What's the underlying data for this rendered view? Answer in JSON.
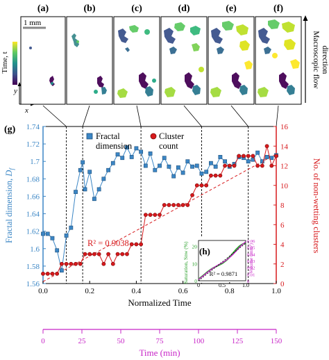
{
  "figure": {
    "scale_bar_label": "1 mm",
    "colorbar_label": "Time, t",
    "axis_y_label": "y",
    "axis_x_label": "x",
    "flow_label_line1": "Macroscopic flow",
    "flow_label_line2": "direction"
  },
  "panels": [
    {
      "label": "(a)",
      "fraction": 0.1
    },
    {
      "label": "(b)",
      "fraction": 0.17
    },
    {
      "label": "(c)",
      "fraction": 0.42
    },
    {
      "label": "(d)",
      "fraction": 0.68
    },
    {
      "label": "(e)",
      "fraction": 0.88
    },
    {
      "label": "(f)",
      "fraction": 1.0
    }
  ],
  "chart_data": {
    "type": "line",
    "panel_label": "(g)",
    "xlabel": "Normalized Time",
    "xlim": [
      0.0,
      1.0
    ],
    "xticks": [
      0.0,
      0.2,
      0.4,
      0.6,
      0.8,
      1.0
    ],
    "xtick_labels": [
      "0.0",
      "0.2",
      "0.4",
      "0.6",
      "0.8",
      "1.0"
    ],
    "secondary_xlabel": "Time (min)",
    "secondary_xticks": [
      0,
      25,
      50,
      75,
      100,
      125,
      150
    ],
    "ylabel_left": "Fractal dimension, D_f",
    "ylim_left": [
      1.56,
      1.74
    ],
    "yticks_left": [
      "1.56",
      "1.58",
      "1.6",
      "1.62",
      "1.64",
      "1.66",
      "1.68",
      "1.7",
      "1.72",
      "1.74"
    ],
    "ylabel_right": "No. of non-wetting clusters",
    "ylim_right": [
      0,
      16
    ],
    "yticks_right": [
      "0",
      "2",
      "4",
      "6",
      "8",
      "10",
      "12",
      "14",
      "16"
    ],
    "r2_label": "R² = 0.9038",
    "event_lines_x": [
      0.1,
      0.17,
      0.42,
      0.68,
      0.88
    ],
    "series": [
      {
        "name": "Fractal dimension",
        "axis": "left",
        "color": "#3b86c5",
        "marker": "square",
        "x": [
          0.0,
          0.02,
          0.04,
          0.06,
          0.08,
          0.1,
          0.12,
          0.14,
          0.16,
          0.17,
          0.18,
          0.2,
          0.22,
          0.24,
          0.26,
          0.28,
          0.3,
          0.32,
          0.34,
          0.36,
          0.38,
          0.4,
          0.42,
          0.44,
          0.46,
          0.48,
          0.5,
          0.52,
          0.54,
          0.56,
          0.58,
          0.6,
          0.62,
          0.64,
          0.66,
          0.68,
          0.7,
          0.72,
          0.74,
          0.76,
          0.78,
          0.8,
          0.82,
          0.84,
          0.86,
          0.88,
          0.9,
          0.92,
          0.94,
          0.96,
          0.98,
          1.0
        ],
        "y": [
          1.617,
          1.617,
          1.612,
          1.598,
          1.575,
          1.615,
          1.624,
          1.665,
          1.69,
          1.699,
          1.668,
          1.688,
          1.657,
          1.668,
          1.68,
          1.69,
          1.698,
          1.708,
          1.704,
          1.716,
          1.705,
          1.715,
          1.711,
          1.695,
          1.709,
          1.69,
          1.695,
          1.704,
          1.694,
          1.683,
          1.693,
          1.687,
          1.7,
          1.694,
          1.695,
          1.686,
          1.688,
          1.698,
          1.694,
          1.705,
          1.7,
          1.694,
          1.697,
          1.705,
          1.704,
          1.7,
          1.702,
          1.71,
          1.7,
          1.705,
          1.704,
          1.707
        ]
      },
      {
        "name": "Cluster count",
        "axis": "right",
        "color": "#d7191c",
        "marker": "circle",
        "x": [
          0.0,
          0.02,
          0.04,
          0.06,
          0.08,
          0.1,
          0.12,
          0.14,
          0.16,
          0.18,
          0.2,
          0.22,
          0.24,
          0.26,
          0.28,
          0.3,
          0.32,
          0.34,
          0.36,
          0.38,
          0.4,
          0.42,
          0.44,
          0.46,
          0.48,
          0.5,
          0.52,
          0.54,
          0.56,
          0.58,
          0.6,
          0.62,
          0.64,
          0.66,
          0.68,
          0.7,
          0.72,
          0.74,
          0.76,
          0.78,
          0.8,
          0.82,
          0.84,
          0.86,
          0.88,
          0.9,
          0.92,
          0.94,
          0.96,
          0.98,
          1.0
        ],
        "y": [
          1,
          1,
          1,
          1,
          2,
          2,
          2,
          2,
          2,
          3,
          3,
          3,
          3,
          2,
          3,
          2,
          3,
          3,
          3,
          4,
          4,
          4,
          7,
          7,
          7,
          7,
          8,
          8,
          8,
          8,
          8,
          8,
          9,
          10,
          10,
          10,
          11,
          11,
          11,
          12,
          12,
          12,
          13,
          13,
          13,
          13,
          12,
          12,
          14,
          12,
          13
        ]
      }
    ],
    "inset": {
      "panel_label": "(h)",
      "ylabel_left": "Saturation, S_nw (%)",
      "ylabel_right": "Volume (mm³)",
      "xticks": [
        "0",
        "0.5",
        "1.0"
      ],
      "yticks_left": [
        "0",
        "10",
        "20"
      ],
      "yticks_right": [
        "0",
        "0.01",
        "0.02",
        "0.03",
        "0.04",
        "0.05",
        "0.06"
      ],
      "r2_label": "R² = 0.9871"
    }
  }
}
